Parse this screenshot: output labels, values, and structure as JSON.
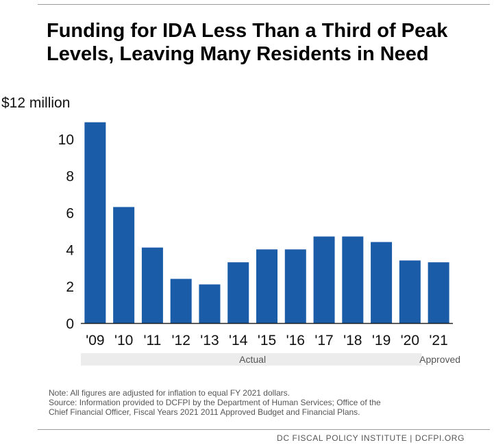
{
  "title": {
    "line1": "Funding for IDA Less Than a Third of Peak",
    "line2": "Levels, Leaving Many Residents in Need"
  },
  "colors": {
    "bar": "#1a5ca8",
    "axis": "#222222",
    "band": "#ececec",
    "text": "#111111",
    "muted": "#555555"
  },
  "chart_data": {
    "type": "bar",
    "title": "Funding for IDA Less Than a Third of Peak Levels, Leaving Many Residents in Need",
    "xlabel": "",
    "ylabel": "",
    "ylim": [
      0,
      12
    ],
    "yticks": [
      {
        "value": 12,
        "label": "$12 million"
      },
      {
        "value": 10,
        "label": "10"
      },
      {
        "value": 8,
        "label": "8"
      },
      {
        "value": 6,
        "label": "6"
      },
      {
        "value": 4,
        "label": "4"
      },
      {
        "value": 2,
        "label": "2"
      },
      {
        "value": 0,
        "label": "0"
      }
    ],
    "categories": [
      "'09",
      "'10",
      "'11",
      "'12",
      "'13",
      "'14",
      "'15",
      "'16",
      "'17",
      "'18",
      "'19",
      "'20",
      "'21"
    ],
    "values": [
      10.9,
      6.3,
      4.1,
      2.4,
      2.1,
      3.3,
      4.0,
      4.0,
      4.7,
      4.7,
      4.4,
      3.4,
      3.3
    ],
    "groups": [
      {
        "label": "Actual",
        "from": 0,
        "to": 11
      },
      {
        "label": "Approved",
        "from": 12,
        "to": 12
      }
    ],
    "grid": false,
    "legend": "none"
  },
  "notes": {
    "line1": "Note: All figures are adjusted for inflation to equal FY 2021 dollars.",
    "line2": "Source: Information provided to DCFPI by the Department of Human Services; Office of the",
    "line3": "Chief Financial Officer, Fiscal Years 2021  2011 Approved Budget and Financial Plans."
  },
  "footer": "DC FISCAL POLICY INSTITUTE | DCFPI.ORG"
}
